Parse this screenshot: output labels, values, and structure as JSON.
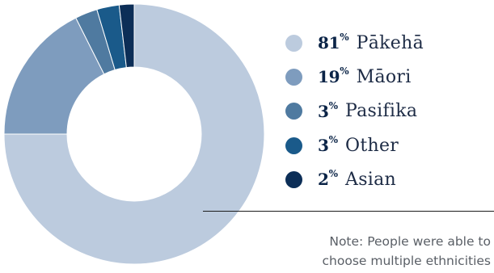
{
  "chart_data": {
    "type": "pie",
    "categories": [
      "Pākehā",
      "Māori",
      "Pasifika",
      "Other",
      "Asian"
    ],
    "values": [
      81,
      19,
      3,
      3,
      2
    ],
    "unit": "%",
    "colors": [
      "#bccbde",
      "#7e9cbe",
      "#4f7aa0",
      "#1a5a8a",
      "#0c2e57"
    ],
    "donut": true,
    "legend_position": "right"
  },
  "note": "Note: People were able to\nchoose multiple ethnicities"
}
